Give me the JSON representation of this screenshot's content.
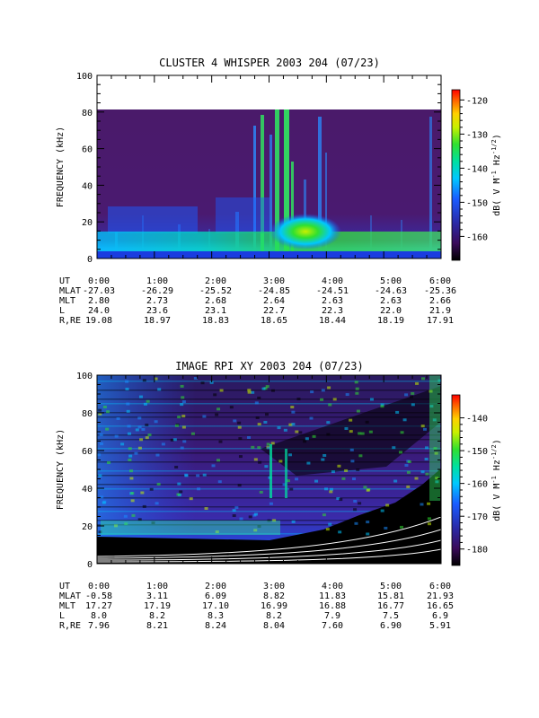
{
  "chart_data": [
    {
      "type": "heatmap",
      "title": "CLUSTER 4 WHISPER 2003 204 (07/23)",
      "ylabel": "FREQUENCY (kHz)",
      "ylim": [
        0,
        100
      ],
      "y_ticks": [
        "0",
        "20",
        "40",
        "60",
        "80",
        "100"
      ],
      "y_tick_values": [
        0,
        20,
        40,
        60,
        80,
        100
      ],
      "x_ticks": [
        "0:00",
        "1:00",
        "2:00",
        "3:00",
        "4:00",
        "5:00",
        "6:00"
      ],
      "x_tick_values": [
        0,
        1,
        2,
        3,
        4,
        5,
        6
      ],
      "data_freq_max": 80,
      "colorbar": {
        "label": "dB( V M-1 Hz-1/2)",
        "range": [
          -167,
          -117
        ],
        "ticks": [
          "-120",
          "-130",
          "-140",
          "-150",
          "-160"
        ],
        "tick_values": [
          -120,
          -130,
          -140,
          -150,
          -160
        ]
      },
      "ephemeris": [
        {
          "label": "UT",
          "values": [
            "0:00",
            "1:00",
            "2:00",
            "3:00",
            "4:00",
            "5:00",
            "6:00"
          ]
        },
        {
          "label": "MLAT",
          "values": [
            "-27.03",
            "-26.29",
            "-25.52",
            "-24.85",
            "-24.51",
            "-24.63",
            "-25.36"
          ]
        },
        {
          "label": "MLT",
          "values": [
            "2.80",
            "2.73",
            "2.68",
            "2.64",
            "2.63",
            "2.63",
            "2.66"
          ]
        },
        {
          "label": "L",
          "values": [
            "24.0",
            "23.6",
            "23.1",
            "22.7",
            "22.3",
            "22.0",
            "21.9"
          ]
        },
        {
          "label": "R,RE",
          "values": [
            "19.08",
            "18.97",
            "18.83",
            "18.65",
            "18.44",
            "18.19",
            "17.91"
          ]
        }
      ]
    },
    {
      "type": "heatmap",
      "title": "IMAGE RPI XY 2003 204 (07/23)",
      "ylabel": "FREQUENCY (kHz)",
      "ylim": [
        0,
        100
      ],
      "y_ticks": [
        "0",
        "20",
        "40",
        "60",
        "80",
        "100"
      ],
      "y_tick_values": [
        0,
        20,
        40,
        60,
        80,
        100
      ],
      "x_ticks": [
        "0:00",
        "1:00",
        "2:00",
        "3:00",
        "4:00",
        "5:00",
        "6:00"
      ],
      "x_tick_values": [
        0,
        1,
        2,
        3,
        4,
        5,
        6
      ],
      "data_freq_max": 100,
      "colorbar": {
        "label": "dB( V M-1 Hz-1/2)",
        "range": [
          -185,
          -133
        ],
        "ticks": [
          "-140",
          "-150",
          "-160",
          "-170",
          "-180"
        ],
        "tick_values": [
          -140,
          -150,
          -160,
          -170,
          -180
        ]
      },
      "ephemeris": [
        {
          "label": "UT",
          "values": [
            "0:00",
            "1:00",
            "2:00",
            "3:00",
            "4:00",
            "5:00",
            "6:00"
          ]
        },
        {
          "label": "MLAT",
          "values": [
            "-0.58",
            "3.11",
            "6.09",
            "8.82",
            "11.83",
            "15.81",
            "21.93"
          ]
        },
        {
          "label": "MLT",
          "values": [
            "17.27",
            "17.19",
            "17.10",
            "16.99",
            "16.88",
            "16.77",
            "16.65"
          ]
        },
        {
          "label": "L",
          "values": [
            "8.0",
            "8.2",
            "8.3",
            "8.2",
            "7.9",
            "7.5",
            "6.9"
          ]
        },
        {
          "label": "R,RE",
          "values": [
            "7.96",
            "8.21",
            "8.24",
            "8.04",
            "7.60",
            "6.90",
            "5.91"
          ]
        }
      ]
    }
  ]
}
